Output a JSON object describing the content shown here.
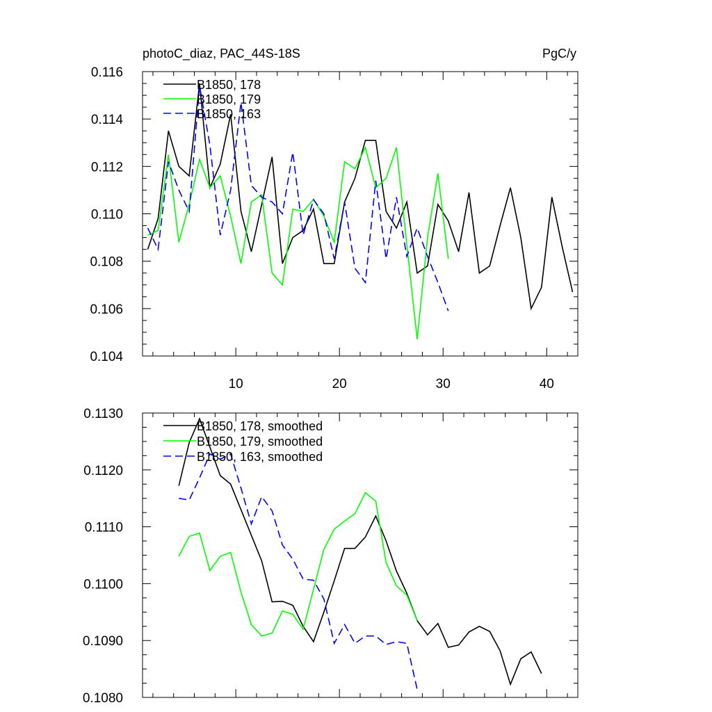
{
  "chart_data": [
    {
      "type": "line",
      "title": "photoC_diaz, PAC_44S-18S",
      "units": "PgC/y",
      "xlim": [
        1,
        43
      ],
      "ylim": [
        0.104,
        0.116
      ],
      "xticks": [
        10,
        20,
        30,
        40
      ],
      "xtick_labels": [
        "10",
        "20",
        "30",
        "40"
      ],
      "yticks": [
        0.104,
        0.106,
        0.108,
        0.11,
        0.112,
        0.114,
        0.116
      ],
      "ytick_labels": [
        "0.104",
        "0.106",
        "0.108",
        "0.110",
        "0.112",
        "0.114",
        "0.116"
      ],
      "legend_position": "top-left",
      "series": [
        {
          "name": "B1850, 178",
          "color": "#000000",
          "dash": "solid",
          "x": [
            1.5,
            2.5,
            3.5,
            4.5,
            5.5,
            6.5,
            7.5,
            8.5,
            9.5,
            10.5,
            11.5,
            12.5,
            13.5,
            14.5,
            15.5,
            16.5,
            17.5,
            18.5,
            19.5,
            20.5,
            21.5,
            22.5,
            23.5,
            24.5,
            25.5,
            26.5,
            27.5,
            28.5,
            29.5,
            30.5,
            31.5,
            32.5,
            33.5,
            34.5,
            35.5,
            36.5,
            37.5,
            38.5,
            39.5,
            40.5,
            41.5,
            42.5
          ],
          "values": [
            0.1085,
            0.1098,
            0.1135,
            0.112,
            0.1116,
            0.1155,
            0.1111,
            0.1121,
            0.1142,
            0.1101,
            0.1084,
            0.1104,
            0.1124,
            0.1079,
            0.109,
            0.1093,
            0.1102,
            0.1079,
            0.1079,
            0.1105,
            0.1115,
            0.1131,
            0.1131,
            0.1101,
            0.1094,
            0.1105,
            0.1075,
            0.1078,
            0.1104,
            0.1097,
            0.1084,
            0.1109,
            0.1075,
            0.1078,
            0.1095,
            0.1111,
            0.109,
            0.106,
            0.1069,
            0.1107,
            0.1086,
            0.1067
          ]
        },
        {
          "name": "B1850, 179",
          "color": "#00ff00",
          "dash": "solid",
          "x": [
            1.5,
            2.5,
            3.5,
            4.5,
            5.5,
            6.5,
            7.5,
            8.5,
            9.5,
            10.5,
            11.5,
            12.5,
            13.5,
            14.5,
            15.5,
            16.5,
            17.5,
            18.5,
            19.5,
            20.5,
            21.5,
            22.5,
            23.5,
            24.5,
            25.5,
            26.5,
            27.5,
            28.5,
            29.5,
            30.5
          ],
          "values": [
            0.1091,
            0.1093,
            0.1125,
            0.1088,
            0.1104,
            0.1123,
            0.1111,
            0.1116,
            0.1099,
            0.1079,
            0.1105,
            0.1108,
            0.1075,
            0.107,
            0.1102,
            0.1101,
            0.1106,
            0.1099,
            0.1088,
            0.1122,
            0.1119,
            0.1128,
            0.1111,
            0.1115,
            0.1128,
            0.1087,
            0.1047,
            0.109,
            0.1117,
            0.1081
          ]
        },
        {
          "name": "B1850, 163",
          "color": "#0000ff",
          "dash": "dashed",
          "x": [
            1.5,
            2.5,
            3.5,
            4.5,
            5.5,
            6.5,
            7.5,
            8.5,
            9.5,
            10.5,
            11.5,
            12.5,
            13.5,
            14.5,
            15.5,
            16.5,
            17.5,
            18.5,
            19.5,
            20.5,
            21.5,
            22.5,
            23.5,
            24.5,
            25.5,
            26.5,
            27.5,
            28.5,
            29.5,
            30.5
          ],
          "values": [
            0.1094,
            0.1085,
            0.1122,
            0.111,
            0.1101,
            0.1154,
            0.1129,
            0.1091,
            0.111,
            0.1147,
            0.1112,
            0.1107,
            0.1105,
            0.11,
            0.1126,
            0.1091,
            0.1106,
            0.11,
            0.1081,
            0.1105,
            0.1077,
            0.1071,
            0.1114,
            0.1081,
            0.1107,
            0.1082,
            0.1094,
            0.1082,
            0.1071,
            0.1059
          ]
        }
      ]
    },
    {
      "type": "line",
      "xlim": [
        1,
        43
      ],
      "ylim": [
        0.108,
        0.113
      ],
      "xticks": [
        10,
        20,
        30,
        40
      ],
      "yticks": [
        0.108,
        0.109,
        0.11,
        0.111,
        0.112,
        0.113
      ],
      "ytick_labels": [
        "0.1080",
        "0.1090",
        "0.1100",
        "0.1110",
        "0.1120",
        "0.1130"
      ],
      "legend_position": "top-left",
      "series": [
        {
          "name": "B1850, 178, smoothed",
          "color": "#000000",
          "dash": "solid",
          "x": [
            4.5,
            5.5,
            6.5,
            7.5,
            8.5,
            9.5,
            10.5,
            11.5,
            12.5,
            13.5,
            14.5,
            15.5,
            16.5,
            17.5,
            18.5,
            19.5,
            20.5,
            21.5,
            22.5,
            23.5,
            24.5,
            25.5,
            26.5,
            27.5,
            28.5,
            29.5,
            30.5,
            31.5,
            32.5,
            33.5,
            34.5,
            35.5,
            36.5,
            37.5,
            38.5,
            39.5
          ],
          "values": [
            0.11172,
            0.11248,
            0.1129,
            0.1124,
            0.1119,
            0.11175,
            0.1113,
            0.11085,
            0.1104,
            0.10968,
            0.10969,
            0.10962,
            0.10925,
            0.10898,
            0.1095,
            0.11005,
            0.11062,
            0.11062,
            0.11082,
            0.11119,
            0.11075,
            0.11022,
            0.10983,
            0.10935,
            0.1091,
            0.1093,
            0.10888,
            0.10892,
            0.10915,
            0.10925,
            0.10916,
            0.10882,
            0.10823,
            0.10868,
            0.1088,
            0.10842
          ]
        },
        {
          "name": "B1850, 179, smoothed",
          "color": "#00ff00",
          "dash": "solid",
          "x": [
            4.5,
            5.5,
            6.5,
            7.5,
            8.5,
            9.5,
            10.5,
            11.5,
            12.5,
            13.5,
            14.5,
            15.5,
            16.5,
            17.5,
            18.5,
            19.5,
            20.5,
            21.5,
            22.5,
            23.5,
            24.5,
            25.5,
            26.5,
            27.5
          ],
          "values": [
            0.11048,
            0.11083,
            0.11089,
            0.11023,
            0.11048,
            0.11055,
            0.10985,
            0.10928,
            0.10908,
            0.10913,
            0.10952,
            0.10946,
            0.1092,
            0.1099,
            0.1106,
            0.11096,
            0.1111,
            0.11123,
            0.1116,
            0.11145,
            0.11037,
            0.10996,
            0.1098,
            0.10935
          ]
        },
        {
          "name": "B1850, 163, smoothed",
          "color": "#0000ff",
          "dash": "dashed",
          "x": [
            4.5,
            5.5,
            6.5,
            7.5,
            8.5,
            9.5,
            10.5,
            11.5,
            12.5,
            13.5,
            14.5,
            15.5,
            16.5,
            17.5,
            18.5,
            19.5,
            20.5,
            21.5,
            22.5,
            23.5,
            24.5,
            25.5,
            26.5,
            27.5
          ],
          "values": [
            0.1115,
            0.11147,
            0.11186,
            0.11228,
            0.11219,
            0.11228,
            0.11168,
            0.11105,
            0.11153,
            0.11128,
            0.11068,
            0.11043,
            0.11008,
            0.11006,
            0.10973,
            0.10895,
            0.10928,
            0.10895,
            0.10908,
            0.10908,
            0.10893,
            0.10898,
            0.10895,
            0.10814
          ]
        }
      ]
    }
  ]
}
